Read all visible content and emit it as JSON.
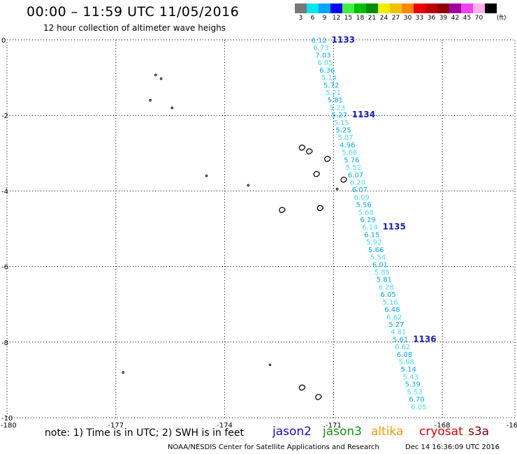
{
  "header": {
    "title": "00:00 – 11:59 UTC 11/05/2016",
    "subtitle": "12 hour collection of altimeter wave heighs"
  },
  "legend_scale": {
    "unit": "(ft)",
    "bins": [
      {
        "label": "3",
        "color": "#777777"
      },
      {
        "label": "6",
        "color": "#00e5f2"
      },
      {
        "label": "9",
        "color": "#00a6f5"
      },
      {
        "label": "12",
        "color": "#0000ee"
      },
      {
        "label": "15",
        "color": "#44ee44"
      },
      {
        "label": "18",
        "color": "#00c000"
      },
      {
        "label": "21",
        "color": "#008a00"
      },
      {
        "label": "24",
        "color": "#eeee00"
      },
      {
        "label": "27",
        "color": "#f5c000"
      },
      {
        "label": "30",
        "color": "#ff8800"
      },
      {
        "label": "33",
        "color": "#ee0000"
      },
      {
        "label": "36",
        "color": "#c00000"
      },
      {
        "label": "39",
        "color": "#8e0000"
      },
      {
        "label": "42",
        "color": "#a000a0"
      },
      {
        "label": "45",
        "color": "#ee44ee"
      },
      {
        "label": "70",
        "color": "#ffb0ee"
      },
      {
        "label": "",
        "color": "#000000"
      }
    ]
  },
  "axes": {
    "x_ticks": [
      "-180",
      "-177",
      "-174",
      "-171",
      "-168",
      "-16"
    ],
    "y_ticks": [
      "0",
      "-2",
      "-4",
      "-6",
      "-8",
      "-10"
    ]
  },
  "track": {
    "color_primary": "#00aee8",
    "color_light": "#44ddee",
    "values": [
      "6.12",
      "6.73",
      "7.03",
      "6.05",
      "6.36",
      "5.14",
      "5.72",
      "5.21",
      "5.81",
      "5.23",
      "5.27",
      "5.15",
      "5.25",
      "5.87",
      "4.96",
      "5.68",
      "5.76",
      "5.52",
      "6.07",
      "6.20",
      "6.07",
      "6.09",
      "5.56",
      "5.68",
      "6.19",
      "6.14",
      "6.15",
      "5.92",
      "5.66",
      "5.54",
      "6.01",
      "5.85",
      "5.81",
      "6.28",
      "6.05",
      "5.16",
      "6.48",
      "6.62",
      "5.27",
      "4.81",
      "5.61",
      "6.62",
      "6.08",
      "5.98",
      "5.14",
      "5.43",
      "5.39",
      "5.53",
      "6.70",
      "6.05"
    ],
    "time_labels": [
      {
        "text": "1133",
        "index": 0
      },
      {
        "text": "1134",
        "index": 10
      },
      {
        "text": "1135",
        "index": 25
      },
      {
        "text": "1136",
        "index": 40
      }
    ],
    "time_label_color": "#1a1ab0"
  },
  "islands": [
    {
      "lon": -175.9,
      "lat": -0.93,
      "kind": "dot"
    },
    {
      "lon": -175.75,
      "lat": -1.03,
      "kind": "dot"
    },
    {
      "lon": -176.05,
      "lat": -1.6,
      "kind": "dot"
    },
    {
      "lon": -175.45,
      "lat": -1.8,
      "kind": "dot"
    },
    {
      "lon": -174.5,
      "lat": -3.6,
      "kind": "dot"
    },
    {
      "lon": -173.35,
      "lat": -3.85,
      "kind": "dot"
    },
    {
      "lon": -171.85,
      "lat": -2.85,
      "kind": "island"
    },
    {
      "lon": -171.65,
      "lat": -2.95,
      "kind": "island"
    },
    {
      "lon": -171.15,
      "lat": -3.15,
      "kind": "island"
    },
    {
      "lon": -171.45,
      "lat": -3.55,
      "kind": "island"
    },
    {
      "lon": -170.7,
      "lat": -3.7,
      "kind": "island"
    },
    {
      "lon": -170.9,
      "lat": -3.95,
      "kind": "dot"
    },
    {
      "lon": -172.4,
      "lat": -4.5,
      "kind": "island"
    },
    {
      "lon": -171.35,
      "lat": -4.45,
      "kind": "island"
    },
    {
      "lon": -172.75,
      "lat": -8.6,
      "kind": "dot"
    },
    {
      "lon": -171.85,
      "lat": -9.2,
      "kind": "island"
    },
    {
      "lon": -171.4,
      "lat": -9.45,
      "kind": "island"
    },
    {
      "lon": -176.8,
      "lat": -8.8,
      "kind": "dot"
    }
  ],
  "footer": {
    "note": "note: 1) Time is in UTC; 2) SWH is in feet",
    "satellites": [
      {
        "name": "jason2",
        "color": "#1010c0"
      },
      {
        "name": "jason3",
        "color": "#109010"
      },
      {
        "name": "altika",
        "color": "#ff9900"
      },
      {
        "name": "cryosat",
        "color": "#dd0000"
      },
      {
        "name": "s3a",
        "color": "#880000"
      }
    ],
    "credit": "NOAA/NESDIS Center for Satellite Applications and Research",
    "timestamp": "Dec 14 16:36:09 UTC 2016"
  }
}
